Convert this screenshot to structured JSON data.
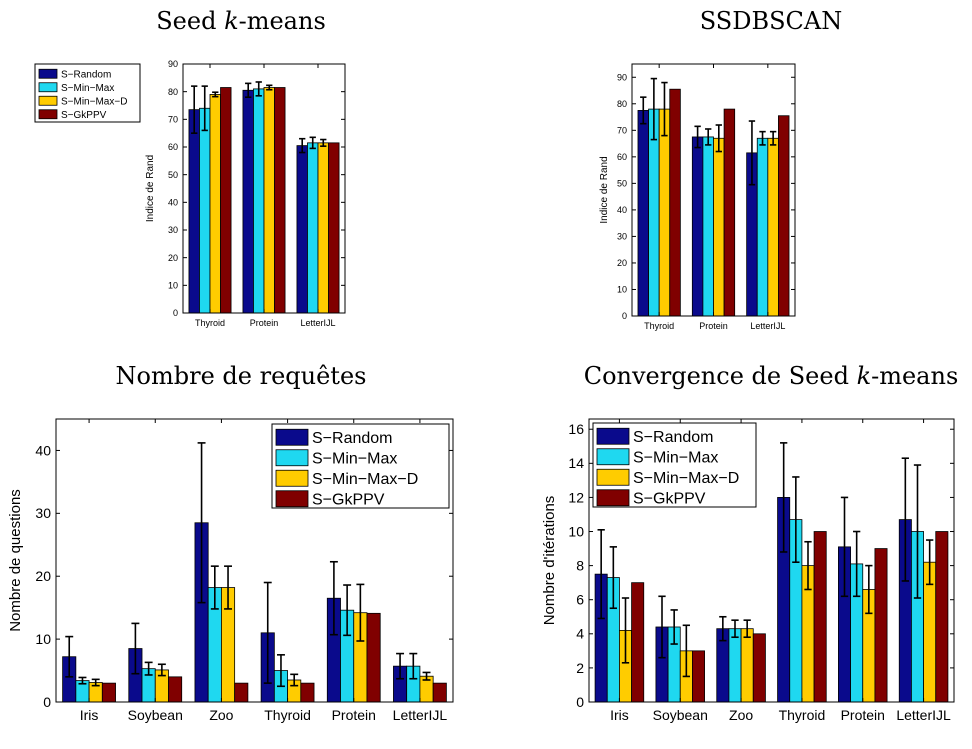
{
  "colors": {
    "S-Random": "#0a0a8c",
    "S-Min-Max": "#1fd8f0",
    "S-Min-Max-D": "#ffcc00",
    "S-GkPPV": "#800000"
  },
  "chart_data": [
    {
      "type": "bar",
      "title": "Seed k-means",
      "title_parts": [
        "Seed ",
        "k",
        "-means"
      ],
      "ylabel": "Indice de Rand",
      "xlabel": "",
      "ylim": [
        0,
        90
      ],
      "yticks": [
        0,
        10,
        20,
        30,
        40,
        50,
        60,
        70,
        80,
        90
      ],
      "categories": [
        "Thyroid",
        "Protein",
        "LetterIJL"
      ],
      "legend_position": "left",
      "series": [
        {
          "name": "S−Random",
          "color": "#0a0a8c",
          "values": [
            73.5,
            80.5,
            60.5
          ],
          "errors": [
            8.5,
            2.5,
            2.5
          ]
        },
        {
          "name": "S−Min−Max",
          "color": "#1fd8f0",
          "values": [
            74,
            81,
            61.5
          ],
          "errors": [
            8,
            2.5,
            2
          ]
        },
        {
          "name": "S−Min−Max−D",
          "color": "#ffcc00",
          "values": [
            79,
            81.5,
            61.5
          ],
          "errors": [
            0.8,
            0.8,
            1.2
          ]
        },
        {
          "name": "S−GkPPV",
          "color": "#800000",
          "values": [
            81.5,
            81.5,
            61.5
          ],
          "errors": [
            0,
            0,
            0
          ]
        }
      ]
    },
    {
      "type": "bar",
      "title": "SSDBSCAN",
      "title_parts": [
        "SSDBSCAN"
      ],
      "ylabel": "Indice de Rand",
      "xlabel": "",
      "ylim": [
        0,
        95
      ],
      "yticks": [
        0,
        10,
        20,
        30,
        40,
        50,
        60,
        70,
        80,
        90
      ],
      "categories": [
        "Thyroid",
        "Protein",
        "LetterIJL"
      ],
      "legend_position": "none",
      "series": [
        {
          "name": "S−Random",
          "color": "#0a0a8c",
          "values": [
            77.5,
            67.5,
            61.5
          ],
          "errors": [
            5,
            4,
            12
          ]
        },
        {
          "name": "S−Min−Max",
          "color": "#1fd8f0",
          "values": [
            78,
            67.5,
            67
          ],
          "errors": [
            11.5,
            3,
            2.5
          ]
        },
        {
          "name": "S−Min−Max−D",
          "color": "#ffcc00",
          "values": [
            78,
            67,
            67
          ],
          "errors": [
            10,
            5,
            2.5
          ]
        },
        {
          "name": "S−GkPPV",
          "color": "#800000",
          "values": [
            85.5,
            78,
            75.5
          ],
          "errors": [
            0,
            0,
            0
          ]
        }
      ]
    },
    {
      "type": "bar",
      "title": "Nombre de requêtes",
      "title_parts": [
        "Nombre de requêtes"
      ],
      "ylabel": "Nombre de questions",
      "xlabel": "",
      "ylim": [
        0,
        45
      ],
      "yticks": [
        0,
        10,
        20,
        30,
        40
      ],
      "categories": [
        "Iris",
        "Soybean",
        "Zoo",
        "Thyroid",
        "Protein",
        "LetterIJL"
      ],
      "legend_position": "top-right",
      "series": [
        {
          "name": "S−Random",
          "color": "#0a0a8c",
          "values": [
            7.2,
            8.5,
            28.5,
            11,
            16.5,
            5.7
          ],
          "errors": [
            3.2,
            4,
            12.7,
            8,
            5.8,
            2
          ]
        },
        {
          "name": "S−Min−Max",
          "color": "#1fd8f0",
          "values": [
            3.4,
            5.3,
            18.2,
            5,
            14.6,
            5.7
          ],
          "errors": [
            0.5,
            1,
            3.4,
            2.5,
            4,
            2
          ]
        },
        {
          "name": "S−Min−Max−D",
          "color": "#ffcc00",
          "values": [
            3.1,
            5.1,
            18.2,
            3.5,
            14.2,
            4.1
          ],
          "errors": [
            0.5,
            0.9,
            3.4,
            0.9,
            4.5,
            0.6
          ]
        },
        {
          "name": "S−GkPPV",
          "color": "#800000",
          "values": [
            3,
            4,
            3,
            3,
            14.1,
            3
          ],
          "errors": [
            0,
            0,
            0,
            0,
            0,
            0
          ]
        }
      ]
    },
    {
      "type": "bar",
      "title": "Convergence de Seed k-means",
      "title_parts": [
        "Convergence de Seed ",
        "k",
        "-means"
      ],
      "ylabel": "Nombre d'itérations",
      "xlabel": "",
      "ylim": [
        0,
        16.6
      ],
      "yticks": [
        0,
        2,
        4,
        6,
        8,
        10,
        12,
        14,
        16
      ],
      "categories": [
        "Iris",
        "Soybean",
        "Zoo",
        "Thyroid",
        "Protein",
        "LetterIJL"
      ],
      "legend_position": "top-left",
      "series": [
        {
          "name": "S−Random",
          "color": "#0a0a8c",
          "values": [
            7.5,
            4.4,
            4.3,
            12,
            9.1,
            10.7
          ],
          "errors": [
            2.6,
            1.8,
            0.7,
            3.2,
            2.9,
            3.6
          ]
        },
        {
          "name": "S−Min−Max",
          "color": "#1fd8f0",
          "values": [
            7.3,
            4.4,
            4.3,
            10.7,
            8.1,
            10
          ],
          "errors": [
            1.8,
            1,
            0.5,
            2.5,
            1.9,
            3.9
          ]
        },
        {
          "name": "S−Min−Max−D",
          "color": "#ffcc00",
          "values": [
            4.2,
            3,
            4.3,
            8,
            6.6,
            8.2
          ],
          "errors": [
            1.9,
            1.5,
            0.5,
            1.4,
            1.4,
            1.3
          ]
        },
        {
          "name": "S−GkPPV",
          "color": "#800000",
          "values": [
            7,
            3,
            4,
            10,
            9,
            10
          ],
          "errors": [
            0,
            0,
            0,
            0,
            0,
            0
          ]
        }
      ]
    }
  ]
}
